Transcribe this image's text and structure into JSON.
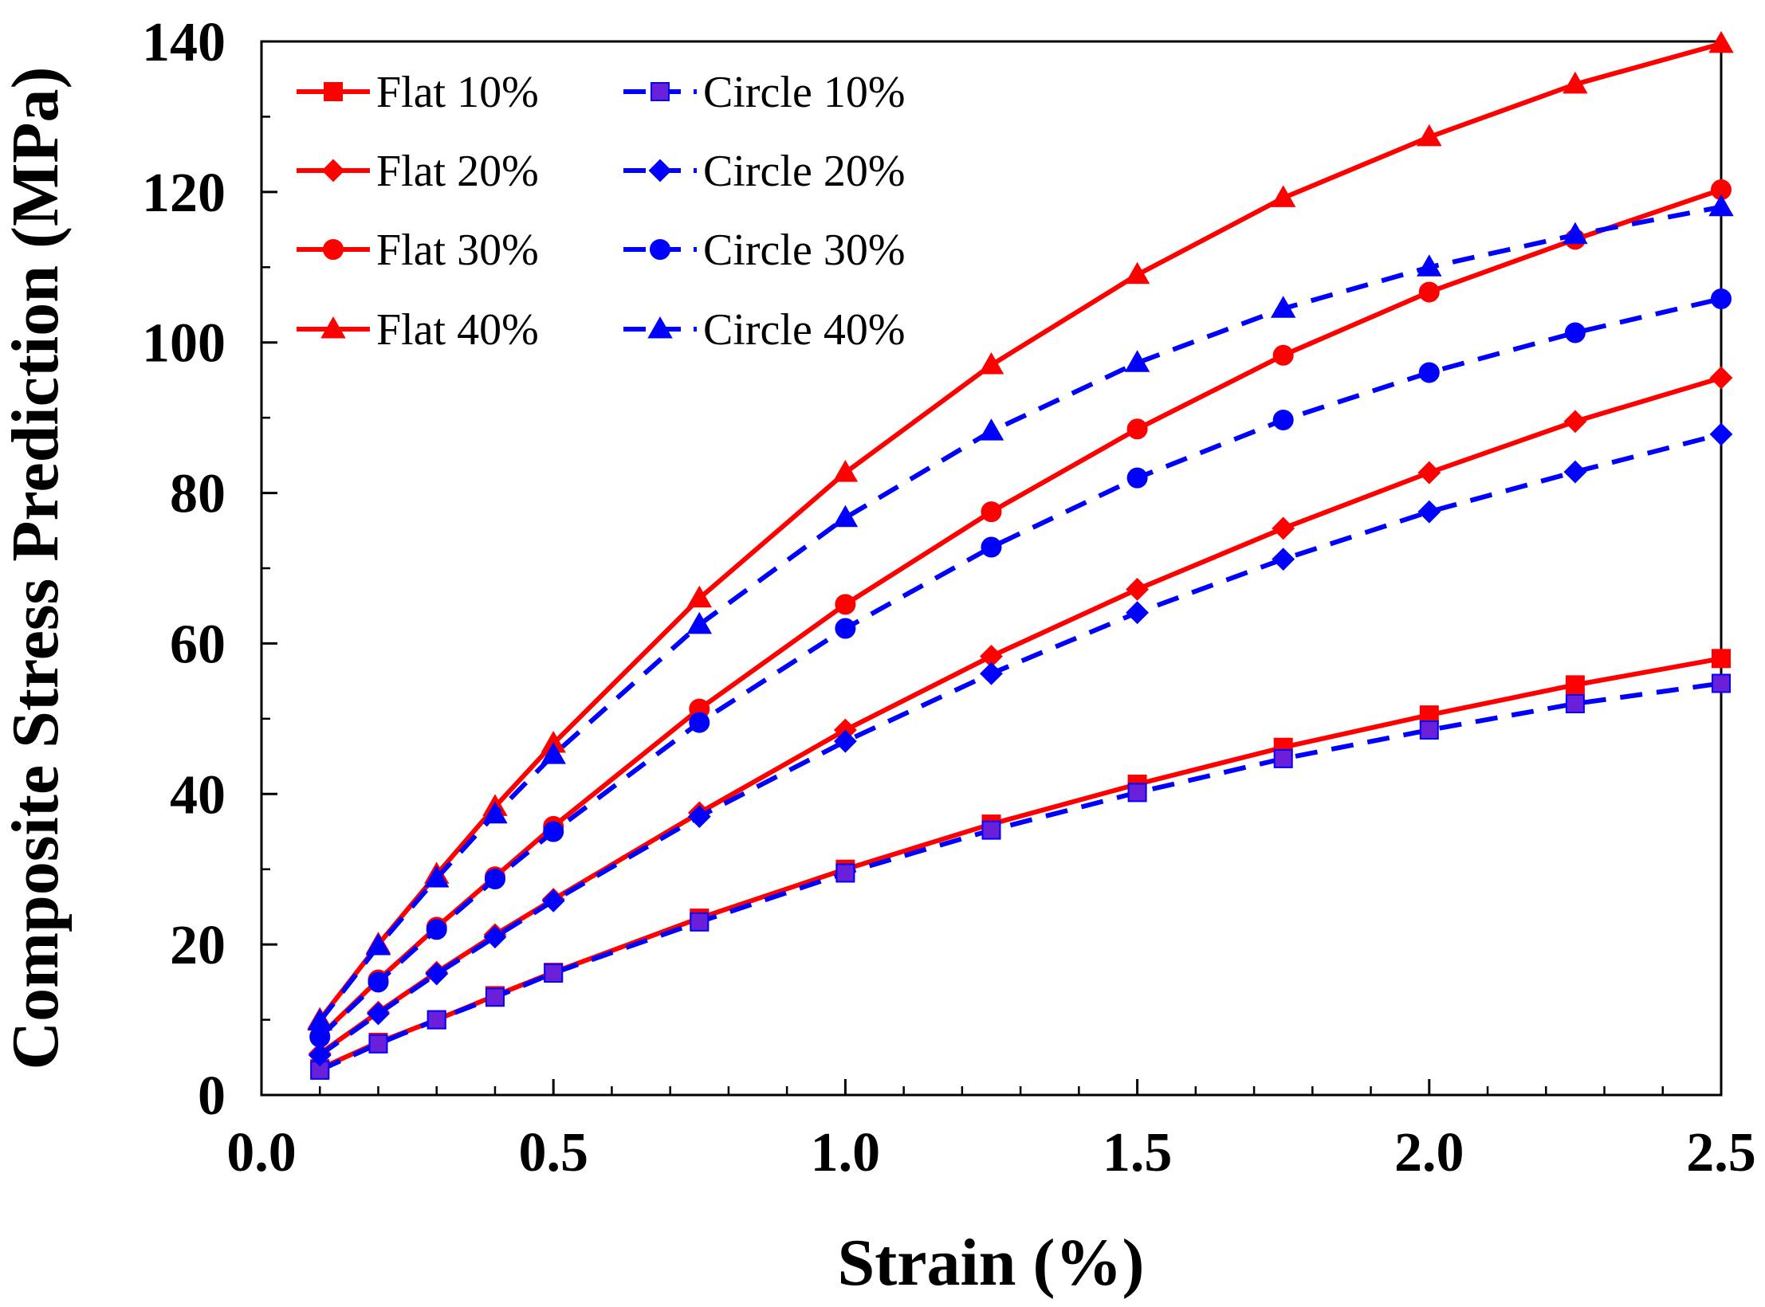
{
  "chart_data": {
    "type": "line",
    "title": "",
    "xlabel": "Strain (%)",
    "ylabel": "Composite Stress Prediction (MPa)",
    "xlim": [
      0.0,
      2.5
    ],
    "ylim": [
      0,
      140
    ],
    "x_ticks": [
      "0.0",
      "0.5",
      "1.0",
      "1.5",
      "2.0",
      "2.5"
    ],
    "y_ticks": [
      "0",
      "20",
      "40",
      "60",
      "80",
      "100",
      "120",
      "140"
    ],
    "grid": false,
    "legend_position": "top-left",
    "x": [
      0.1,
      0.2,
      0.3,
      0.4,
      0.5,
      0.75,
      1.0,
      1.25,
      1.5,
      1.75,
      2.0,
      2.25,
      2.5
    ],
    "series": [
      {
        "name": "Flat 10%",
        "color": "#ff0000",
        "marker": "square",
        "dash": "solid",
        "values": [
          3.5,
          7,
          10,
          13.2,
          16.3,
          23.5,
          30,
          36,
          41.3,
          46.2,
          50.5,
          54.5,
          58
        ]
      },
      {
        "name": "Flat 20%",
        "color": "#ff0000",
        "marker": "diamond",
        "dash": "solid",
        "values": [
          5.5,
          11,
          16.3,
          21.3,
          26,
          37.5,
          48.5,
          58.3,
          67.2,
          75.3,
          82.7,
          89.5,
          95.3
        ]
      },
      {
        "name": "Flat 30%",
        "color": "#ff0000",
        "marker": "circle",
        "dash": "solid",
        "values": [
          7.8,
          15.3,
          22.3,
          29,
          35.7,
          51.3,
          65.2,
          77.5,
          88.5,
          98.3,
          106.7,
          113.7,
          120.3
        ]
      },
      {
        "name": "Flat 40%",
        "color": "#ff0000",
        "marker": "triangle",
        "dash": "solid",
        "values": [
          10,
          20,
          29.3,
          38.3,
          46.7,
          66,
          82.7,
          97,
          109,
          119.2,
          127.3,
          134.3,
          139.7
        ]
      },
      {
        "name": "Circle 10%",
        "color": "#0000ff",
        "marker": "square",
        "dash": "dashed",
        "values": [
          3.3,
          6.8,
          10,
          13,
          16.2,
          23,
          29.5,
          35.2,
          40.2,
          44.7,
          48.5,
          52,
          54.7
        ]
      },
      {
        "name": "Circle 20%",
        "color": "#0000ff",
        "marker": "diamond",
        "dash": "dashed",
        "values": [
          5.3,
          10.8,
          16.1,
          21,
          25.8,
          37,
          47,
          56,
          64.1,
          71.2,
          77.5,
          82.8,
          87.8
        ]
      },
      {
        "name": "Circle 30%",
        "color": "#0000ff",
        "marker": "circle",
        "dash": "dashed",
        "values": [
          7.7,
          15,
          22,
          28.7,
          35,
          49.5,
          62,
          72.8,
          82,
          89.7,
          96,
          101.3,
          105.8
        ]
      },
      {
        "name": "Circle 40%",
        "color": "#0000ff",
        "marker": "triangle",
        "dash": "dashed",
        "values": [
          9.8,
          19.8,
          28.8,
          37.3,
          45.2,
          62.5,
          76.7,
          88.2,
          97.3,
          104.5,
          110,
          114.3,
          118
        ]
      }
    ]
  }
}
